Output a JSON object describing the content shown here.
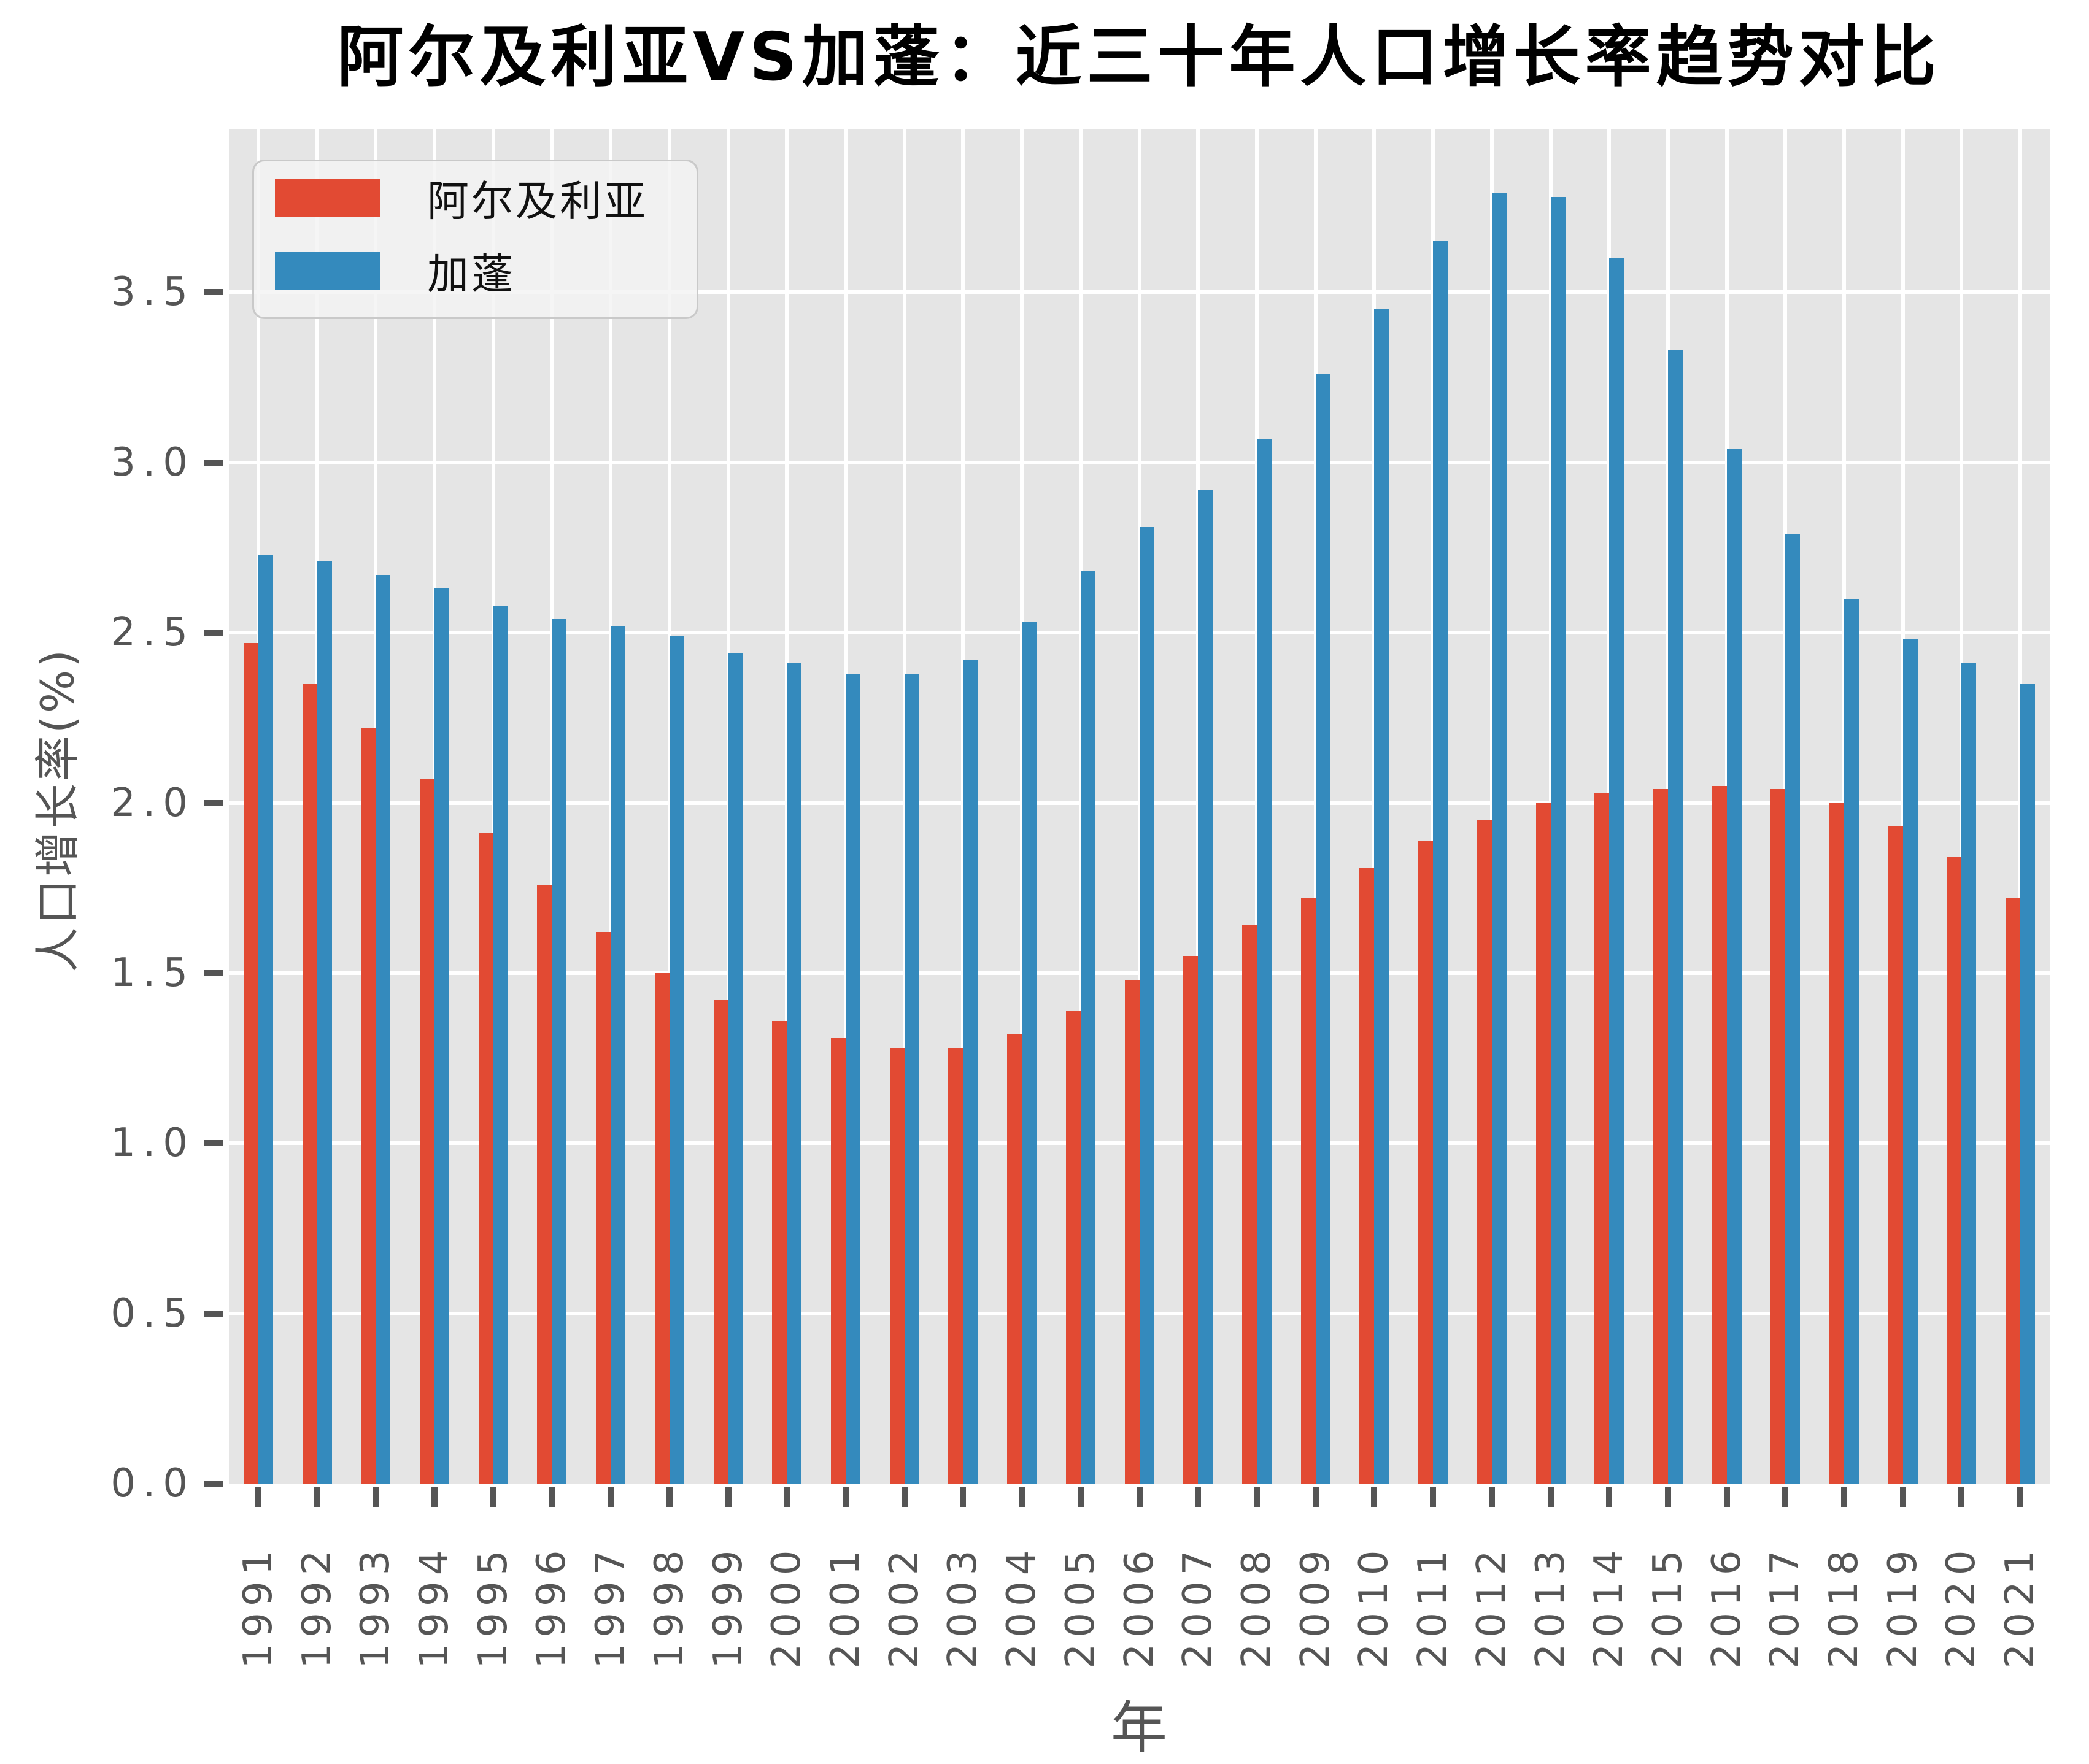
{
  "title": "阿尔及利亚VS加蓬：近三十年人口增长率趋势对比",
  "legend": {
    "items": [
      {
        "label": "阿尔及利亚",
        "color": "#E24A33"
      },
      {
        "label": "加蓬",
        "color": "#348ABD"
      }
    ]
  },
  "axes": {
    "xlabel": "年",
    "ylabel": "人口增长率(%)"
  },
  "chart_data": {
    "type": "bar",
    "title": "阿尔及利亚VS加蓬：近三十年人口增长率趋势对比",
    "xlabel": "年",
    "ylabel": "人口增长率(%)",
    "categories": [
      "1991",
      "1992",
      "1993",
      "1994",
      "1995",
      "1996",
      "1997",
      "1998",
      "1999",
      "2000",
      "2001",
      "2002",
      "2003",
      "2004",
      "2005",
      "2006",
      "2007",
      "2008",
      "2009",
      "2010",
      "2011",
      "2012",
      "2013",
      "2014",
      "2015",
      "2016",
      "2017",
      "2018",
      "2019",
      "2020",
      "2021"
    ],
    "series": [
      {
        "name": "阿尔及利亚",
        "color": "#E24A33",
        "values": [
          2.47,
          2.35,
          2.22,
          2.07,
          1.91,
          1.76,
          1.62,
          1.5,
          1.42,
          1.36,
          1.31,
          1.28,
          1.28,
          1.32,
          1.39,
          1.48,
          1.55,
          1.64,
          1.72,
          1.81,
          1.89,
          1.95,
          2.0,
          2.03,
          2.04,
          2.05,
          2.04,
          2.0,
          1.93,
          1.84,
          1.72
        ]
      },
      {
        "name": "加蓬",
        "color": "#348ABD",
        "values": [
          2.73,
          2.71,
          2.67,
          2.63,
          2.58,
          2.54,
          2.52,
          2.49,
          2.44,
          2.41,
          2.38,
          2.38,
          2.42,
          2.53,
          2.68,
          2.81,
          2.92,
          3.07,
          3.26,
          3.45,
          3.65,
          3.79,
          3.78,
          3.6,
          3.33,
          3.04,
          2.79,
          2.6,
          2.48,
          2.41,
          2.35
        ]
      }
    ],
    "ylim": [
      0,
      3.98
    ],
    "yticks": [
      "0.0",
      "0.5",
      "1.0",
      "1.5",
      "2.0",
      "2.5",
      "3.0",
      "3.5"
    ],
    "grid": true,
    "grid_color": "#FFFFFF",
    "plot_background": "#E5E5E5",
    "tick_color": "#555555",
    "legend_position": "upper left"
  }
}
